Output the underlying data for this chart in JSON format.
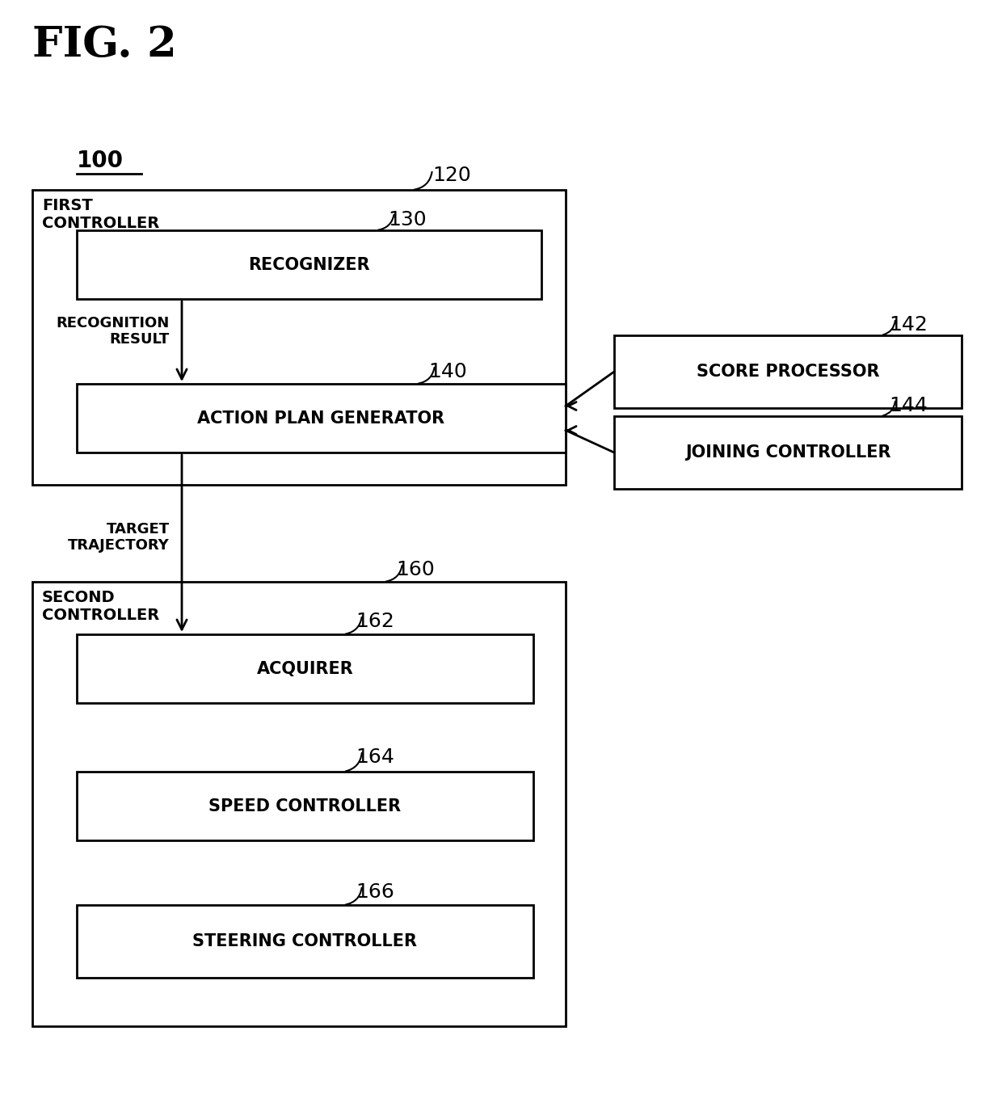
{
  "title": "FIG. 2",
  "fig_width": 12.4,
  "fig_height": 13.7,
  "bg_color": "#ffffff",
  "label_100": "100",
  "label_120": "120",
  "label_130": "130",
  "label_140": "140",
  "label_142": "142",
  "label_144": "144",
  "label_160": "160",
  "label_162": "162",
  "label_164": "164",
  "label_166": "166",
  "text_first_controller": "FIRST\nCONTROLLER",
  "text_recognizer": "RECOGNIZER",
  "text_recognition_result": "RECOGNITION\nRESULT",
  "text_action_plan": "ACTION PLAN GENERATOR",
  "text_score_processor": "SCORE PROCESSOR",
  "text_joining_controller": "JOINING CONTROLLER",
  "text_second_controller": "SECOND\nCONTROLLER",
  "text_target_trajectory": "TARGET\nTRAJECTORY",
  "text_acquirer": "ACQUIRER",
  "text_speed_controller": "SPEED CONTROLLER",
  "text_steering_controller": "STEERING CONTROLLER"
}
